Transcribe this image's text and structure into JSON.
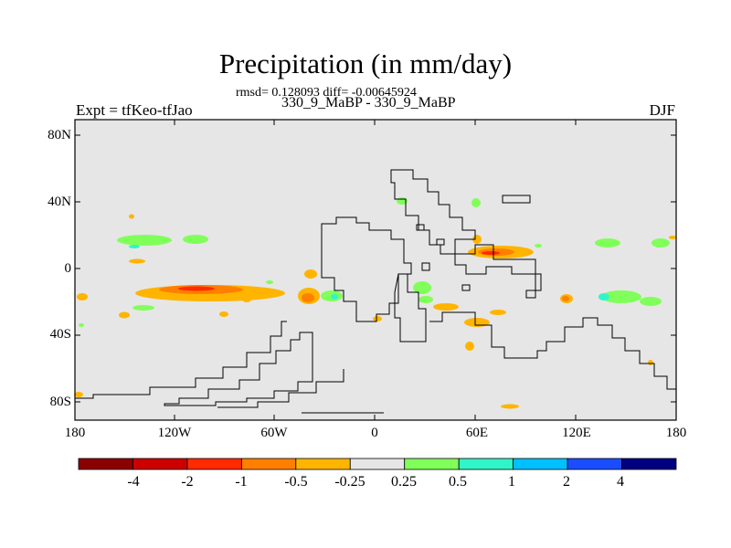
{
  "title": "Precipitation (in mm/day)",
  "stats": "rmsd= 0.128093 diff= -0.00645924",
  "expression": "330_9_MaBP - 330_9_MaBP",
  "left_label": "Expt = tfKeo-tfJao",
  "right_label": "DJF",
  "lat_ticks": [
    "80N",
    "40N",
    "0",
    "40S",
    "80S"
  ],
  "lon_ticks": [
    "180",
    "120W",
    "60W",
    "0",
    "60E",
    "120E",
    "180"
  ],
  "colorbar": {
    "labels": [
      "-4",
      "-2",
      "-1",
      "-0.5",
      "-0.25",
      "0.25",
      "0.5",
      "1",
      "2",
      "4"
    ],
    "colors": [
      "#8b0000",
      "#cd0000",
      "#ff2a00",
      "#ff7f00",
      "#ffb400",
      "#e6e6e6",
      "#80ff5a",
      "#30f5c8",
      "#00c0ff",
      "#1a4dff",
      "#000080"
    ]
  },
  "map": {
    "background_color": "#e6e6e6",
    "lon_range": [
      -180,
      180
    ],
    "lat_range": [
      -90,
      90
    ],
    "level_colors": {
      "lt_-4": "#8b0000",
      "-4_-2": "#cd0000",
      "-2_-1": "#ff2a00",
      "-1_-0.5": "#ff7f00",
      "-0.5_-0.25": "#ffb400",
      "0.25_0.5": "#80ff5a",
      "0.5_1": "#30f5c8"
    }
  }
}
